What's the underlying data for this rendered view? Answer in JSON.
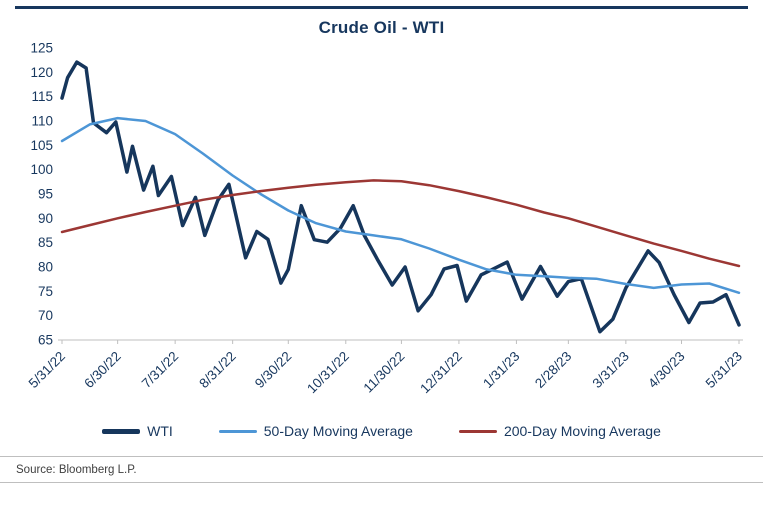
{
  "page": {
    "background": "#FFFFFF",
    "accent_rule_color": "#17375E"
  },
  "chart_data": {
    "type": "line",
    "title": "Crude Oil - WTI",
    "title_color": "#17375E",
    "label_color": "#17375E",
    "axis_color": "#BFBFBF",
    "grid": false,
    "legend_position": "bottom",
    "ylim": [
      65,
      125
    ],
    "ytick_step": 5,
    "xlabel": "",
    "ylabel": "",
    "x_range": [
      "2022-05-31",
      "2023-05-31"
    ],
    "x_ticks": [
      {
        "label": "5/31/22",
        "date": "2022-05-31"
      },
      {
        "label": "6/30/22",
        "date": "2022-06-30"
      },
      {
        "label": "7/31/22",
        "date": "2022-07-31"
      },
      {
        "label": "8/31/22",
        "date": "2022-08-31"
      },
      {
        "label": "9/30/22",
        "date": "2022-09-30"
      },
      {
        "label": "10/31/22",
        "date": "2022-10-31"
      },
      {
        "label": "11/30/22",
        "date": "2022-11-30"
      },
      {
        "label": "12/31/22",
        "date": "2022-12-31"
      },
      {
        "label": "1/31/23",
        "date": "2023-01-31"
      },
      {
        "label": "2/28/23",
        "date": "2023-02-28"
      },
      {
        "label": "3/31/23",
        "date": "2023-03-31"
      },
      {
        "label": "4/30/23",
        "date": "2023-04-30"
      },
      {
        "label": "5/31/23",
        "date": "2023-05-31"
      }
    ],
    "series": [
      {
        "name": "WTI",
        "color": "#16365C",
        "stroke_width": 3.5,
        "points": [
          [
            "2022-05-31",
            114.7
          ],
          [
            "2022-06-03",
            118.9
          ],
          [
            "2022-06-08",
            122.1
          ],
          [
            "2022-06-13",
            120.9
          ],
          [
            "2022-06-17",
            109.6
          ],
          [
            "2022-06-24",
            107.6
          ],
          [
            "2022-06-29",
            109.8
          ],
          [
            "2022-07-05",
            99.5
          ],
          [
            "2022-07-08",
            104.8
          ],
          [
            "2022-07-14",
            95.8
          ],
          [
            "2022-07-19",
            100.7
          ],
          [
            "2022-07-22",
            94.7
          ],
          [
            "2022-07-29",
            98.6
          ],
          [
            "2022-08-04",
            88.5
          ],
          [
            "2022-08-11",
            94.3
          ],
          [
            "2022-08-16",
            86.5
          ],
          [
            "2022-08-23",
            93.7
          ],
          [
            "2022-08-29",
            97.0
          ],
          [
            "2022-09-07",
            81.9
          ],
          [
            "2022-09-13",
            87.3
          ],
          [
            "2022-09-19",
            85.7
          ],
          [
            "2022-09-26",
            76.7
          ],
          [
            "2022-09-30",
            79.5
          ],
          [
            "2022-10-07",
            92.6
          ],
          [
            "2022-10-14",
            85.6
          ],
          [
            "2022-10-21",
            85.1
          ],
          [
            "2022-10-28",
            87.9
          ],
          [
            "2022-11-04",
            92.6
          ],
          [
            "2022-11-10",
            86.5
          ],
          [
            "2022-11-17",
            81.6
          ],
          [
            "2022-11-25",
            76.3
          ],
          [
            "2022-12-02",
            80.0
          ],
          [
            "2022-12-09",
            71.0
          ],
          [
            "2022-12-16",
            74.3
          ],
          [
            "2022-12-23",
            79.6
          ],
          [
            "2022-12-30",
            80.3
          ],
          [
            "2023-01-04",
            73.0
          ],
          [
            "2023-01-12",
            78.4
          ],
          [
            "2023-01-18",
            79.5
          ],
          [
            "2023-01-26",
            81.0
          ],
          [
            "2023-02-03",
            73.4
          ],
          [
            "2023-02-13",
            80.1
          ],
          [
            "2023-02-22",
            74.0
          ],
          [
            "2023-02-28",
            77.0
          ],
          [
            "2023-03-07",
            77.6
          ],
          [
            "2023-03-17",
            66.7
          ],
          [
            "2023-03-24",
            69.3
          ],
          [
            "2023-03-31",
            75.7
          ],
          [
            "2023-04-12",
            83.3
          ],
          [
            "2023-04-18",
            80.9
          ],
          [
            "2023-04-26",
            74.3
          ],
          [
            "2023-05-04",
            68.6
          ],
          [
            "2023-05-10",
            72.6
          ],
          [
            "2023-05-17",
            72.8
          ],
          [
            "2023-05-24",
            74.3
          ],
          [
            "2023-05-31",
            68.1
          ]
        ]
      },
      {
        "name": "50-Day Moving Average",
        "color": "#4D96D6",
        "stroke_width": 2.5,
        "points": [
          [
            "2022-05-31",
            105.9
          ],
          [
            "2022-06-15",
            109.3
          ],
          [
            "2022-06-30",
            110.6
          ],
          [
            "2022-07-15",
            110.0
          ],
          [
            "2022-07-31",
            107.3
          ],
          [
            "2022-08-15",
            103.3
          ],
          [
            "2022-08-31",
            98.8
          ],
          [
            "2022-09-15",
            95.0
          ],
          [
            "2022-09-30",
            91.6
          ],
          [
            "2022-10-15",
            89.0
          ],
          [
            "2022-10-31",
            87.3
          ],
          [
            "2022-11-15",
            86.5
          ],
          [
            "2022-11-30",
            85.7
          ],
          [
            "2022-12-15",
            83.8
          ],
          [
            "2022-12-31",
            81.5
          ],
          [
            "2023-01-15",
            79.5
          ],
          [
            "2023-01-31",
            78.4
          ],
          [
            "2023-02-15",
            78.1
          ],
          [
            "2023-02-28",
            77.8
          ],
          [
            "2023-03-15",
            77.6
          ],
          [
            "2023-03-31",
            76.5
          ],
          [
            "2023-04-15",
            75.7
          ],
          [
            "2023-04-30",
            76.4
          ],
          [
            "2023-05-15",
            76.6
          ],
          [
            "2023-05-31",
            74.7
          ]
        ]
      },
      {
        "name": "200-Day Moving Average",
        "color": "#9C3734",
        "stroke_width": 2.5,
        "points": [
          [
            "2022-05-31",
            87.2
          ],
          [
            "2022-06-15",
            88.6
          ],
          [
            "2022-06-30",
            90.0
          ],
          [
            "2022-07-15",
            91.3
          ],
          [
            "2022-07-31",
            92.6
          ],
          [
            "2022-08-15",
            93.8
          ],
          [
            "2022-08-31",
            94.8
          ],
          [
            "2022-09-15",
            95.6
          ],
          [
            "2022-09-30",
            96.3
          ],
          [
            "2022-10-15",
            96.9
          ],
          [
            "2022-10-31",
            97.4
          ],
          [
            "2022-11-15",
            97.8
          ],
          [
            "2022-11-30",
            97.6
          ],
          [
            "2022-12-15",
            96.8
          ],
          [
            "2022-12-31",
            95.6
          ],
          [
            "2023-01-15",
            94.3
          ],
          [
            "2023-01-31",
            92.8
          ],
          [
            "2023-02-15",
            91.2
          ],
          [
            "2023-02-28",
            90.0
          ],
          [
            "2023-03-15",
            88.3
          ],
          [
            "2023-03-31",
            86.5
          ],
          [
            "2023-04-15",
            84.8
          ],
          [
            "2023-04-30",
            83.3
          ],
          [
            "2023-05-15",
            81.7
          ],
          [
            "2023-05-31",
            80.2
          ]
        ]
      }
    ]
  },
  "footer": {
    "source": "Source: Bloomberg L.P."
  }
}
